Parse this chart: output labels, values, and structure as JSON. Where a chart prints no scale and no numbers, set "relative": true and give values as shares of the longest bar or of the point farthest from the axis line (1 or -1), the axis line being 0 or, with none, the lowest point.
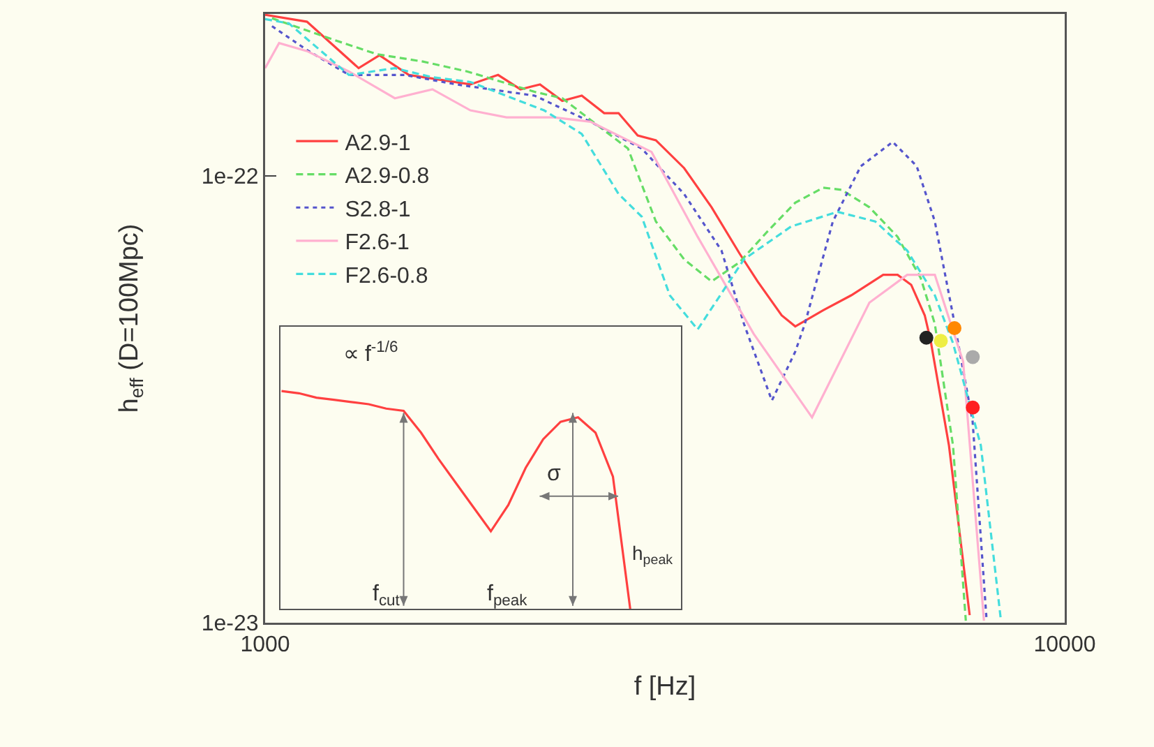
{
  "chart_data": [
    {
      "type": "line",
      "xlabel": "f [Hz]",
      "ylabel": "h$_{eff}$ (D=100Mpc)",
      "log": "xy",
      "legend": "left",
      "xlim": [
        1000,
        10000
      ],
      "ylim": [
        1e-23,
        2.3e-22
      ],
      "xticks": [
        1000,
        10000
      ],
      "yticks": [
        {
          "value": 1e-23,
          "label": "1e-23"
        },
        {
          "value": 1e-22,
          "label": "1e-22"
        }
      ],
      "series": [
        {
          "name": "A2.9-1",
          "color": "#ff4040",
          "line_style": "solid",
          "x": [
            1000,
            1128,
            1309,
            1390,
            1513,
            1806,
            1956,
            2086,
            2207,
            2353,
            2489,
            2655,
            2767,
            2924,
            3081,
            3342,
            3617,
            3920,
            4130,
            4426,
            4603,
            4989,
            5408,
            5929,
            6180,
            6427,
            6683,
            6797,
            7166,
            7606
          ],
          "values": [
            2.29e-22,
            2.21e-22,
            1.74e-22,
            1.86e-22,
            1.68e-22,
            1.6e-22,
            1.68e-22,
            1.56e-22,
            1.6e-22,
            1.47e-22,
            1.51e-22,
            1.38e-22,
            1.38e-22,
            1.23e-22,
            1.2e-22,
            1.04e-22,
            8.5e-23,
            6.7e-23,
            5.8e-23,
            4.87e-23,
            4.6e-23,
            5e-23,
            5.4e-23,
            6e-23,
            6e-23,
            5.7e-23,
            4.87e-23,
            4.28e-23,
            2.49e-23,
            1.04e-23
          ]
        },
        {
          "name": "A2.9-0.8",
          "color": "#66dd66",
          "line_style": "dashed",
          "x": [
            1020,
            1222,
            1379,
            1575,
            1791,
            2173,
            2353,
            2843,
            3081,
            3342,
            3617,
            3920,
            4248,
            4603,
            4989,
            5258,
            5698,
            6180,
            6607,
            6880,
            7250,
            7522
          ],
          "values": [
            2.25e-22,
            2.01e-22,
            1.87e-22,
            1.8e-22,
            1.71e-22,
            1.54e-22,
            1.49e-22,
            1.15e-22,
            7.9e-23,
            6.5e-23,
            5.8e-23,
            6.4e-23,
            7.5e-23,
            8.7e-23,
            9.4e-23,
            9.3e-23,
            8.5e-23,
            7.3e-23,
            5.9e-23,
            4.66e-23,
            2.49e-23,
            1.01e-23
          ]
        },
        {
          "name": "S2.8-1",
          "color": "#5555cc",
          "line_style": "dotted",
          "x": [
            1020,
            1128,
            1273,
            1495,
            1734,
            2173,
            2552,
            2958,
            3342,
            3722,
            3971,
            4303,
            4603,
            4732,
            5129,
            5559,
            6095,
            6530,
            6880,
            7250,
            7671,
            7987
          ],
          "values": [
            2.16e-22,
            1.91e-22,
            1.68e-22,
            1.68e-22,
            1.6e-22,
            1.51e-22,
            1.32e-22,
            1.15e-22,
            9.1e-23,
            6.8e-23,
            4.66e-23,
            3.14e-23,
            4.04e-23,
            4.66e-23,
            7.9e-23,
            1.05e-22,
            1.19e-22,
            1.05e-22,
            7.9e-23,
            4.87e-23,
            2.82e-23,
            1.01e-23
          ]
        },
        {
          "name": "F2.6-1",
          "color": "#ffb0d0",
          "line_style": "solid",
          "x": [
            1000,
            1041,
            1128,
            1273,
            1453,
            1619,
            1806,
            2004,
            2297,
            2552,
            3043,
            3475,
            4083,
            4831,
            5698,
            6353,
            6880,
            7464,
            7925
          ],
          "values": [
            1.74e-22,
            1.98e-22,
            1.9e-22,
            1.71e-22,
            1.49e-22,
            1.56e-22,
            1.4e-22,
            1.35e-22,
            1.35e-22,
            1.32e-22,
            1.13e-22,
            7.3e-23,
            4.43e-23,
            2.88e-23,
            5.2e-23,
            6e-23,
            6e-23,
            3.84e-23,
            1.01e-23
          ]
        },
        {
          "name": "F2.6-0.8",
          "color": "#44dddd",
          "line_style": "dashed",
          "x": [
            1000,
            1071,
            1273,
            1453,
            1619,
            1806,
            2233,
            2489,
            2767,
            2958,
            3207,
            3475,
            3971,
            4550,
            5200,
            5794,
            6353,
            6880,
            7250,
            7855,
            8318
          ],
          "values": [
            2.24e-22,
            2.19e-22,
            1.68e-22,
            1.74e-22,
            1.66e-22,
            1.62e-22,
            1.4e-22,
            1.24e-22,
            9.1e-23,
            8.1e-23,
            5.4e-23,
            4.53e-23,
            6.5e-23,
            7.7e-23,
            8.3e-23,
            7.9e-23,
            6.8e-23,
            5.4e-23,
            4.22e-23,
            2.49e-23,
            1.02e-23
          ]
        },
        {
          "type": "scatter",
          "marker": "circle",
          "colors": [
            "#222222",
            "#eeee44",
            "#ff8800",
            "#aaaaaa",
            "#ff2020"
          ],
          "x": [
            6714,
            7000,
            7280,
            7674,
            7674
          ],
          "values": [
            4.34e-23,
            4.27e-23,
            4.56e-23,
            3.93e-23,
            3.03e-23
          ]
        }
      ]
    },
    {
      "type": "line",
      "relative": true,
      "categories": [
        null,
        null,
        null,
        null,
        null,
        null,
        null,
        null,
        null,
        null,
        null,
        null,
        null,
        null,
        null,
        null,
        null,
        null,
        null,
        null,
        null
      ],
      "annotations": [
        "∝ f$^{-1/6}$",
        "f$_{cut}$",
        "f$_{peak}$",
        "h$_{peak}$",
        "σ"
      ],
      "series": [
        {
          "color": "#ff4040",
          "values": [
            1,
            0.99,
            0.97,
            0.96,
            0.95,
            0.94,
            0.92,
            0.91,
            0.81,
            0.69,
            0.58,
            0.47,
            0.36,
            0.48,
            0.65,
            0.78,
            0.86,
            0.88,
            0.81,
            0.61,
            0
          ]
        }
      ]
    }
  ]
}
